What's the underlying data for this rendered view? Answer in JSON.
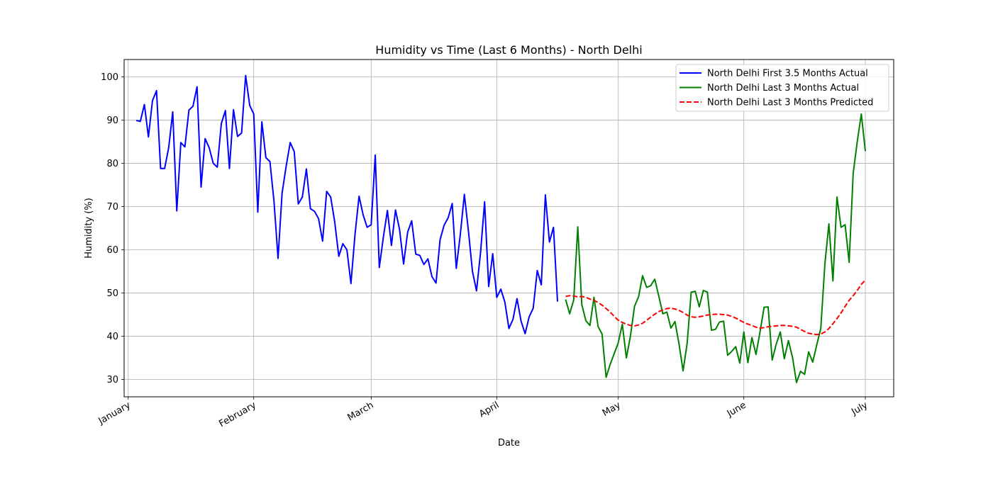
{
  "chart_data": {
    "type": "line",
    "title": "Humidity vs Time (Last 6 Months) - North Delhi",
    "xlabel": "Date",
    "ylabel": "Humidity (%)",
    "xlim": [
      "2023-12-31",
      "2024-07-08"
    ],
    "ylim": [
      26,
      104
    ],
    "x_ticks": [
      {
        "date": "2024-01-01",
        "label": "January"
      },
      {
        "date": "2024-02-01",
        "label": "February"
      },
      {
        "date": "2024-03-01",
        "label": "March"
      },
      {
        "date": "2024-04-01",
        "label": "April"
      },
      {
        "date": "2024-05-01",
        "label": "May"
      },
      {
        "date": "2024-06-01",
        "label": "June"
      },
      {
        "date": "2024-07-01",
        "label": "July"
      }
    ],
    "y_ticks": [
      30,
      40,
      50,
      60,
      70,
      80,
      90,
      100
    ],
    "grid": true,
    "legend_position": "top-right",
    "series": [
      {
        "name": "North Delhi First 3.5 Months Actual",
        "color": "#0000ff",
        "style": "solid",
        "start_date": "2024-01-03",
        "values": [
          89.9,
          89.7,
          93.6,
          86.1,
          94.5,
          96.8,
          78.8,
          78.8,
          83.6,
          91.9,
          69.0,
          84.8,
          83.8,
          92.3,
          93.2,
          97.7,
          74.5,
          85.7,
          83.6,
          80.0,
          79.1,
          89.2,
          92.2,
          78.8,
          92.4,
          86.2,
          87.0,
          100.3,
          93.4,
          91.4,
          68.7,
          89.6,
          81.3,
          80.4,
          71.2,
          58.0,
          73.1,
          79.3,
          84.8,
          82.7,
          70.6,
          72.2,
          78.7,
          69.5,
          68.9,
          67.2,
          62.0,
          73.5,
          72.2,
          66.4,
          58.5,
          61.4,
          60.0,
          52.2,
          63.5,
          72.4,
          68.1,
          65.2,
          65.8,
          81.9,
          55.9,
          62.9,
          69.1,
          61.0,
          69.2,
          64.7,
          56.7,
          64.1,
          66.7,
          59.0,
          58.7,
          56.6,
          57.9,
          53.8,
          52.3,
          62.3,
          65.7,
          67.4,
          70.7,
          55.7,
          63.5,
          72.8,
          64.4,
          55.0,
          50.5,
          59.4,
          71.1,
          51.5,
          59.1,
          49.0,
          50.9,
          47.9,
          41.8,
          43.9,
          48.7,
          43.5,
          40.6,
          44.5,
          46.5,
          55.2,
          51.9,
          72.7,
          61.8,
          65.2,
          48.0
        ]
      },
      {
        "name": "North Delhi Last 3 Months Actual",
        "color": "#008000",
        "style": "solid",
        "start_date": "2024-04-18",
        "values": [
          48.5,
          45.2,
          48.4,
          65.3,
          47.3,
          43.6,
          42.5,
          49.0,
          42.3,
          40.5,
          30.5,
          33.5,
          36.0,
          38.5,
          42.8,
          35.0,
          40.0,
          46.9,
          49.1,
          54.0,
          51.3,
          51.7,
          53.2,
          49.3,
          45.2,
          45.6,
          41.9,
          43.4,
          38.2,
          32.0,
          38.3,
          50.2,
          50.4,
          46.8,
          50.6,
          50.2,
          41.4,
          41.6,
          43.3,
          43.5,
          35.6,
          36.5,
          37.6,
          33.8,
          41.0,
          33.9,
          39.7,
          35.8,
          41.0,
          46.7,
          46.8,
          34.5,
          38.2,
          41.0,
          34.8,
          39.0,
          35.2,
          29.3,
          31.9,
          31.2,
          36.4,
          34.0,
          38.0,
          41.8,
          56.6,
          66.0,
          52.8,
          72.2,
          65.2,
          65.8,
          57.1,
          77.7,
          85.0,
          91.4,
          82.8
        ]
      },
      {
        "name": "North Delhi Last 3 Months Predicted",
        "color": "#ff0000",
        "style": "dashed",
        "start_date": "2024-04-18",
        "values": [
          49.2,
          49.4,
          49.3,
          49.1,
          49.2,
          49.0,
          48.6,
          48.3,
          47.8,
          47.2,
          46.4,
          45.6,
          44.6,
          43.7,
          43.2,
          42.8,
          42.5,
          42.4,
          42.6,
          43.0,
          43.7,
          44.4,
          45.1,
          45.7,
          46.1,
          46.4,
          46.5,
          46.3,
          46.0,
          45.5,
          44.9,
          44.5,
          44.4,
          44.5,
          44.7,
          44.9,
          45.0,
          45.1,
          45.1,
          45.0,
          44.9,
          44.6,
          44.2,
          43.7,
          43.2,
          42.8,
          42.5,
          42.1,
          41.9,
          42.0,
          42.2,
          42.3,
          42.4,
          42.5,
          42.5,
          42.4,
          42.3,
          42.1,
          41.6,
          41.1,
          40.7,
          40.5,
          40.4,
          40.5,
          41.0,
          41.8,
          42.9,
          44.1,
          45.4,
          46.9,
          48.3,
          49.4,
          50.6,
          52.0,
          53.0
        ]
      }
    ]
  }
}
